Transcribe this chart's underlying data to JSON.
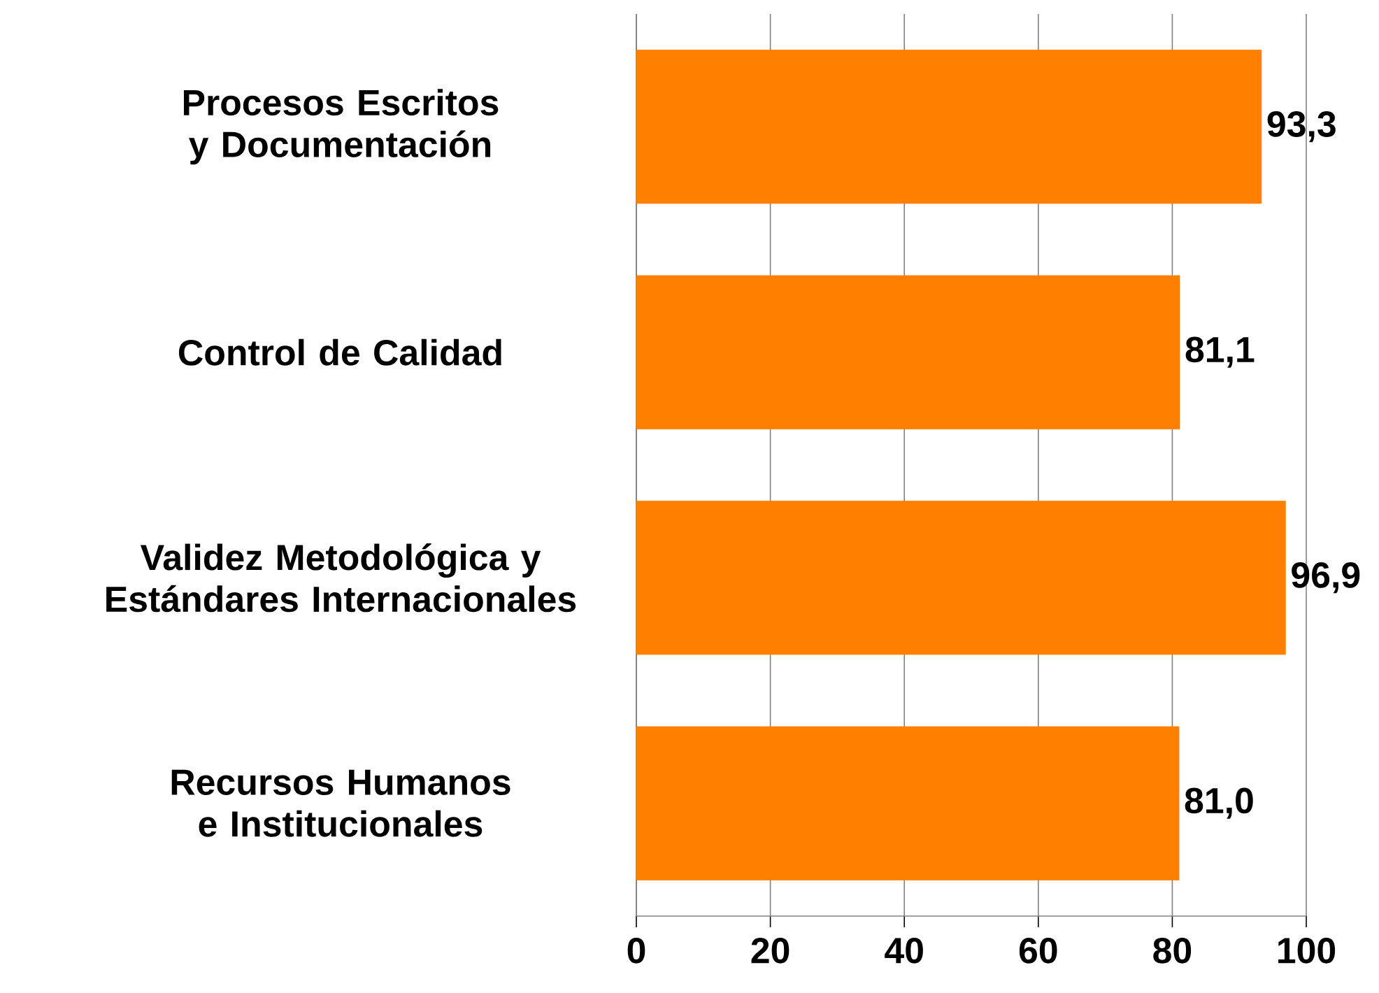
{
  "chart_data": {
    "type": "bar",
    "orientation": "horizontal",
    "categories": [
      "Procesos Escritos y Documentación",
      "Control de Calidad",
      "Validez Metodológica y Estándares Internacionales",
      "Recursos Humanos e Institucionales"
    ],
    "values": [
      93.3,
      81.1,
      96.9,
      81.0
    ],
    "value_labels": [
      "93,3",
      "81,1",
      "96,9",
      "81,0"
    ],
    "color": "#ff7f00",
    "xlim": [
      0,
      100
    ],
    "xticks": [
      0,
      20,
      40,
      60,
      80,
      100
    ],
    "grid": "x"
  }
}
